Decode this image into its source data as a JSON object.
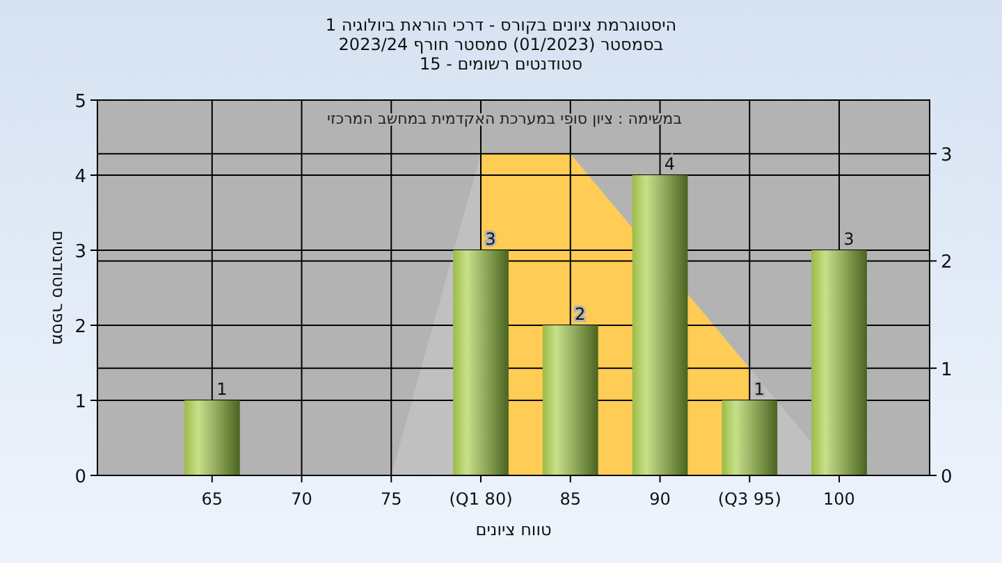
{
  "chart_data": {
    "type": "bar",
    "title": "היסטוגרמת ציונים בקורס - דרכי הוראת ביולוגיה 1",
    "subtitle": "בסמסטר  (01/2023)  סמסטר חורף 2023/24\nסטודנטים רשומים - 15",
    "annotations": [
      "במשימה : ציון סופי במערכת האקדמית במחשב המרכזי"
    ],
    "xlabel": "טווח ציונים",
    "ylabel": "מספר סטודנטים",
    "categories": [
      "65",
      "70",
      "75",
      "(Q1 80)",
      "85",
      "90",
      "(Q3 95)",
      "100"
    ],
    "series": [
      {
        "type": "area",
        "axis": "y2",
        "color": "#c0c0c0",
        "values": [
          null,
          null,
          0,
          3,
          3,
          null,
          1,
          0
        ]
      },
      {
        "type": "area",
        "axis": "y2",
        "color": "#ffcc55",
        "values": [
          null,
          null,
          null,
          3,
          3,
          null,
          1,
          null
        ]
      },
      {
        "color": "#9bbb45",
        "values": [
          1,
          0,
          0,
          3,
          2,
          4,
          1,
          3
        ],
        "value_labels": [
          "1",
          null,
          null,
          "3",
          "2",
          "4",
          "1",
          "3"
        ]
      }
    ],
    "ylim": [
      0,
      5
    ],
    "yticks": [
      0,
      1,
      2,
      3,
      4,
      5
    ],
    "y2lim": [
      0,
      3.5
    ],
    "y2ticks": [
      0,
      1,
      2,
      3
    ],
    "grid": true
  }
}
